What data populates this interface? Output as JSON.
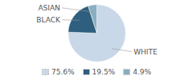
{
  "chart_data": {
    "type": "pie",
    "categories": [
      "WHITE",
      "BLACK",
      "ASIAN"
    ],
    "values": [
      75.6,
      19.5,
      4.9
    ],
    "value_labels": [
      "75.6%",
      "19.5%",
      "4.9%"
    ],
    "colors": [
      "#c8d8e8",
      "#2e5f7e",
      "#8aafc0"
    ],
    "legend": "bottom"
  }
}
